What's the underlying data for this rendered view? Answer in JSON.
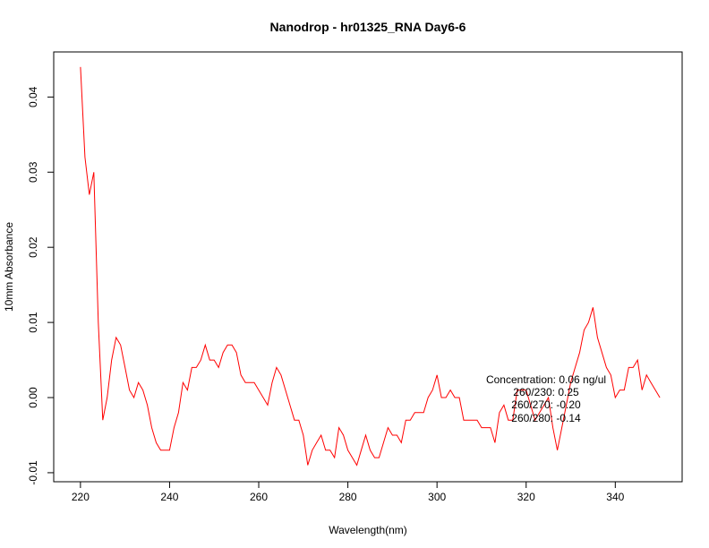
{
  "chart_data": {
    "type": "line",
    "title": "Nanodrop - hr01325_RNA Day6-6",
    "xlabel": "Wavelength(nm)",
    "ylabel": "10mm Absorbance",
    "xlim": [
      214,
      355
    ],
    "ylim": [
      -0.0112,
      0.046
    ],
    "grid": false,
    "x_ticks": [
      220,
      240,
      260,
      280,
      300,
      320,
      340
    ],
    "y_ticks": [
      -0.01,
      0.0,
      0.01,
      0.02,
      0.03,
      0.04
    ],
    "y_tick_labels": [
      "-0.01",
      "0.00",
      "0.01",
      "0.02",
      "0.03",
      "0.04"
    ],
    "series": [
      {
        "color": "#ff0000",
        "x_start": 220,
        "x_step": 1,
        "values": [
          0.044,
          0.032,
          0.027,
          0.03,
          0.01,
          -0.003,
          0.0,
          0.005,
          0.008,
          0.007,
          0.004,
          0.001,
          0.0,
          0.002,
          0.001,
          -0.001,
          -0.004,
          -0.006,
          -0.007,
          -0.007,
          -0.007,
          -0.004,
          -0.002,
          0.002,
          0.001,
          0.004,
          0.004,
          0.005,
          0.007,
          0.005,
          0.005,
          0.004,
          0.006,
          0.007,
          0.007,
          0.006,
          0.003,
          0.002,
          0.002,
          0.002,
          0.001,
          0.0,
          -0.001,
          0.002,
          0.004,
          0.003,
          0.001,
          -0.001,
          -0.003,
          -0.003,
          -0.005,
          -0.009,
          -0.007,
          -0.006,
          -0.005,
          -0.007,
          -0.007,
          -0.008,
          -0.004,
          -0.005,
          -0.007,
          -0.008,
          -0.009,
          -0.007,
          -0.005,
          -0.007,
          -0.008,
          -0.008,
          -0.006,
          -0.004,
          -0.005,
          -0.005,
          -0.006,
          -0.003,
          -0.003,
          -0.002,
          -0.002,
          -0.002,
          0.0,
          0.001,
          0.003,
          0.0,
          0.0,
          0.001,
          0.0,
          0.0,
          -0.003,
          -0.003,
          -0.003,
          -0.003,
          -0.004,
          -0.004,
          -0.004,
          -0.006,
          -0.002,
          -0.001,
          -0.003,
          -0.003,
          0.001,
          0.001,
          0.001,
          -0.001,
          -0.003,
          -0.002,
          -0.001,
          0.0,
          -0.004,
          -0.007,
          -0.004,
          -0.001,
          0.002,
          0.004,
          0.006,
          0.009,
          0.01,
          0.012,
          0.008,
          0.006,
          0.004,
          0.003,
          0.0,
          0.001,
          0.001,
          0.004,
          0.004,
          0.005,
          0.001,
          0.003,
          0.002,
          0.001,
          0.0
        ]
      }
    ],
    "annotations": [
      "Concentration: 0.06 ng/ul",
      "260/230: 0.25",
      "260/270: -0.20",
      "260/280: -0.14"
    ]
  }
}
